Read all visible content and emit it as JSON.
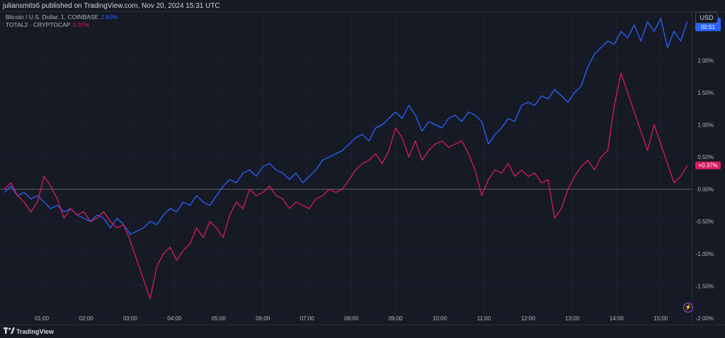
{
  "header": {
    "publisher_text": "juliansmits6 published on TradingView.com, Nov 20, 2024 15:31 UTC"
  },
  "currency_button": "USD",
  "footer": {
    "brand": "TradingView"
  },
  "legend": [
    {
      "name": "Bitcoin / U.S. Dollar, 1, COINBASE",
      "value": "2.60%",
      "color": "#2962ff"
    },
    {
      "name": "TOTAL2 · CRYPTOCAP",
      "value": "0.37%",
      "color": "#d81b60"
    }
  ],
  "last_value_badges": [
    {
      "label": "+2.60%",
      "sub": "00:51",
      "value": 2.6,
      "color": "#2962ff"
    },
    {
      "label": "+0.37%",
      "sub": "",
      "value": 0.37,
      "color": "#d81b60"
    }
  ],
  "icons": {
    "lightning": "lightning-icon",
    "logo": "tradingview-logo-icon"
  },
  "chart_data": {
    "type": "line",
    "x_tick_labels": [
      "01:00",
      "02:00",
      "03:00",
      "04:00",
      "05:00",
      "06:00",
      "07:00",
      "08:00",
      "09:00",
      "10:00",
      "11:00",
      "12:00",
      "13:00",
      "14:00",
      "15:00"
    ],
    "x_tick_hours": [
      1,
      2,
      3,
      4,
      5,
      6,
      7,
      8,
      9,
      10,
      11,
      12,
      13,
      14,
      15
    ],
    "xlim_hours": [
      0.15,
      15.7
    ],
    "y_tick_labels": [
      "2.00%",
      "1.50%",
      "1.00%",
      "0.50%",
      "0.00%",
      "-0.50%",
      "-1.00%",
      "-1.50%",
      "-2.00%"
    ],
    "y_tick_values": [
      2.0,
      1.5,
      1.0,
      0.5,
      0.0,
      -0.5,
      -1.0,
      -1.5,
      -2.0
    ],
    "ylim": [
      -2.1,
      2.75
    ],
    "zero_line": 0.0,
    "grid": true,
    "series": [
      {
        "name": "Bitcoin / U.S. Dollar, 1, COINBASE",
        "color": "#2962ff",
        "x": [
          0.15,
          0.3,
          0.45,
          0.6,
          0.75,
          0.9,
          1.05,
          1.2,
          1.35,
          1.5,
          1.65,
          1.8,
          1.95,
          2.1,
          2.25,
          2.4,
          2.55,
          2.7,
          2.85,
          3.0,
          3.15,
          3.3,
          3.45,
          3.6,
          3.75,
          3.9,
          4.05,
          4.2,
          4.35,
          4.5,
          4.65,
          4.8,
          4.95,
          5.1,
          5.25,
          5.4,
          5.55,
          5.7,
          5.85,
          6.0,
          6.15,
          6.3,
          6.45,
          6.6,
          6.75,
          6.9,
          7.05,
          7.2,
          7.35,
          7.5,
          7.65,
          7.8,
          7.95,
          8.1,
          8.25,
          8.4,
          8.55,
          8.7,
          8.85,
          9.0,
          9.15,
          9.3,
          9.45,
          9.6,
          9.75,
          9.9,
          10.05,
          10.2,
          10.35,
          10.5,
          10.65,
          10.8,
          10.95,
          11.1,
          11.25,
          11.4,
          11.55,
          11.7,
          11.85,
          12.0,
          12.15,
          12.3,
          12.45,
          12.6,
          12.75,
          12.9,
          13.05,
          13.2,
          13.35,
          13.5,
          13.65,
          13.8,
          13.95,
          14.1,
          14.25,
          14.4,
          14.55,
          14.7,
          14.85,
          15.0,
          15.15,
          15.3,
          15.45,
          15.6
        ],
        "y": [
          -0.05,
          0.05,
          -0.1,
          -0.05,
          -0.15,
          -0.1,
          -0.2,
          -0.3,
          -0.25,
          -0.35,
          -0.3,
          -0.4,
          -0.45,
          -0.5,
          -0.4,
          -0.45,
          -0.6,
          -0.45,
          -0.55,
          -0.7,
          -0.65,
          -0.6,
          -0.5,
          -0.55,
          -0.4,
          -0.3,
          -0.35,
          -0.2,
          -0.25,
          -0.1,
          -0.2,
          -0.25,
          -0.1,
          0.05,
          0.15,
          0.1,
          0.25,
          0.3,
          0.2,
          0.35,
          0.4,
          0.3,
          0.25,
          0.15,
          0.25,
          0.1,
          0.2,
          0.3,
          0.45,
          0.5,
          0.55,
          0.6,
          0.7,
          0.8,
          0.85,
          0.75,
          0.95,
          1.0,
          1.1,
          1.2,
          1.1,
          1.3,
          1.15,
          0.9,
          1.05,
          1.0,
          0.95,
          1.1,
          1.15,
          1.05,
          1.2,
          1.15,
          1.05,
          0.7,
          0.85,
          0.95,
          1.1,
          1.05,
          1.3,
          1.35,
          1.3,
          1.45,
          1.4,
          1.55,
          1.45,
          1.35,
          1.5,
          1.6,
          1.9,
          2.1,
          2.2,
          2.3,
          2.25,
          2.45,
          2.35,
          2.55,
          2.3,
          2.6,
          2.45,
          2.65,
          2.2,
          2.45,
          2.3,
          2.6
        ],
        "last_value": 2.6
      },
      {
        "name": "TOTAL2 · CRYPTOCAP",
        "color": "#d81b60",
        "x": [
          0.15,
          0.3,
          0.45,
          0.6,
          0.75,
          0.9,
          1.05,
          1.2,
          1.35,
          1.5,
          1.65,
          1.8,
          1.95,
          2.1,
          2.25,
          2.4,
          2.55,
          2.7,
          2.85,
          3.0,
          3.15,
          3.3,
          3.45,
          3.6,
          3.75,
          3.9,
          4.05,
          4.2,
          4.35,
          4.5,
          4.65,
          4.8,
          4.95,
          5.1,
          5.25,
          5.4,
          5.55,
          5.7,
          5.85,
          6.0,
          6.15,
          6.3,
          6.45,
          6.6,
          6.75,
          6.9,
          7.05,
          7.2,
          7.35,
          7.5,
          7.65,
          7.8,
          7.95,
          8.1,
          8.25,
          8.4,
          8.55,
          8.7,
          8.85,
          9.0,
          9.15,
          9.3,
          9.45,
          9.6,
          9.75,
          9.9,
          10.05,
          10.2,
          10.35,
          10.5,
          10.65,
          10.8,
          10.95,
          11.1,
          11.25,
          11.4,
          11.55,
          11.7,
          11.85,
          12.0,
          12.15,
          12.3,
          12.45,
          12.6,
          12.75,
          12.9,
          13.05,
          13.2,
          13.35,
          13.5,
          13.65,
          13.8,
          13.95,
          14.1,
          14.25,
          14.4,
          14.55,
          14.7,
          14.85,
          15.0,
          15.15,
          15.3,
          15.45,
          15.6
        ],
        "y": [
          0.0,
          0.1,
          -0.1,
          -0.2,
          -0.35,
          -0.2,
          0.2,
          0.05,
          -0.15,
          -0.45,
          -0.3,
          -0.4,
          -0.35,
          -0.5,
          -0.45,
          -0.35,
          -0.5,
          -0.6,
          -0.55,
          -0.8,
          -1.1,
          -1.4,
          -1.7,
          -1.2,
          -1.0,
          -0.9,
          -1.1,
          -0.95,
          -0.85,
          -0.6,
          -0.75,
          -0.5,
          -0.6,
          -0.75,
          -0.4,
          -0.2,
          -0.3,
          0.0,
          -0.1,
          -0.05,
          0.05,
          -0.1,
          -0.15,
          -0.3,
          -0.2,
          -0.25,
          -0.3,
          -0.15,
          -0.1,
          0.0,
          -0.05,
          0.0,
          0.15,
          0.3,
          0.4,
          0.45,
          0.55,
          0.4,
          0.6,
          0.95,
          0.8,
          0.5,
          0.75,
          0.45,
          0.6,
          0.7,
          0.75,
          0.65,
          0.7,
          0.75,
          0.55,
          0.3,
          -0.1,
          0.15,
          0.3,
          0.25,
          0.4,
          0.2,
          0.3,
          0.2,
          0.25,
          0.1,
          0.15,
          -0.45,
          -0.3,
          0.0,
          0.2,
          0.35,
          0.45,
          0.3,
          0.5,
          0.6,
          1.3,
          1.8,
          1.5,
          1.2,
          0.9,
          0.6,
          1.0,
          0.7,
          0.4,
          0.1,
          0.2,
          0.37
        ],
        "last_value": 0.37
      }
    ]
  }
}
